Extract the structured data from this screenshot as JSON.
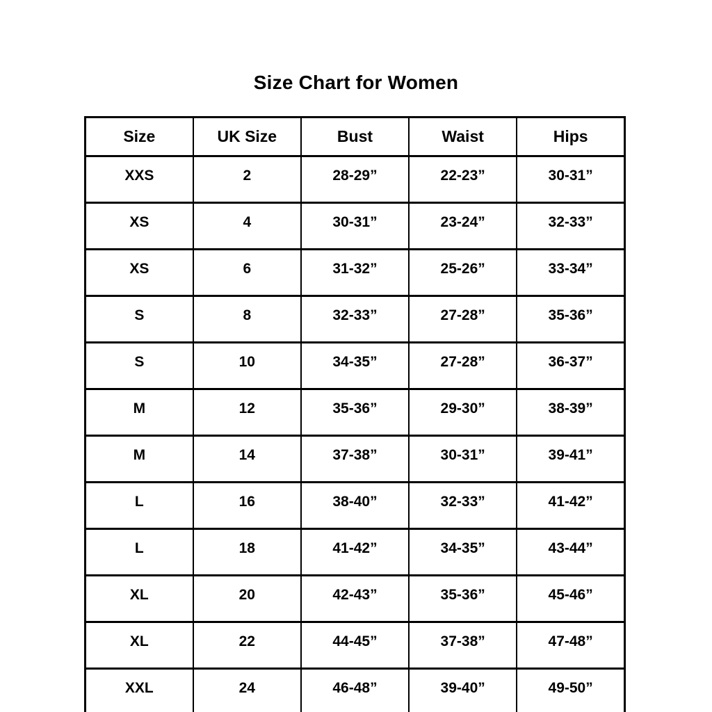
{
  "page": {
    "title": "Size Chart for Women"
  },
  "chart_data": {
    "type": "table",
    "title": "Size Chart for Women",
    "columns": [
      "Size",
      "UK Size",
      "Bust",
      "Waist",
      "Hips"
    ],
    "rows": [
      [
        "XXS",
        "2",
        "28-29”",
        "22-23”",
        "30-31”"
      ],
      [
        "XS",
        "4",
        "30-31”",
        "23-24”",
        "32-33”"
      ],
      [
        "XS",
        "6",
        "31-32”",
        "25-26”",
        "33-34”"
      ],
      [
        "S",
        "8",
        "32-33”",
        "27-28”",
        "35-36”"
      ],
      [
        "S",
        "10",
        "34-35”",
        "27-28”",
        "36-37”"
      ],
      [
        "M",
        "12",
        "35-36”",
        "29-30”",
        "38-39”"
      ],
      [
        "M",
        "14",
        "37-38”",
        "30-31”",
        "39-41”"
      ],
      [
        "L",
        "16",
        "38-40”",
        "32-33”",
        "41-42”"
      ],
      [
        "L",
        "18",
        "41-42”",
        "34-35”",
        "43-44”"
      ],
      [
        "XL",
        "20",
        "42-43”",
        "35-36”",
        "45-46”"
      ],
      [
        "XL",
        "22",
        "44-45”",
        "37-38”",
        "47-48”"
      ],
      [
        "XXL",
        "24",
        "46-48”",
        "39-40”",
        "49-50”"
      ]
    ],
    "layout": {
      "grid": true,
      "text_color": "#000000",
      "background_color": "#ffffff",
      "border_color": "#000000"
    }
  }
}
